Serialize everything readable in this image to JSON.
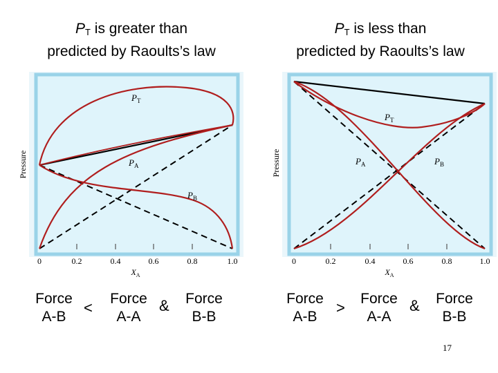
{
  "left_panel": {
    "title_line1_prefix": "P",
    "title_line1_sub": "T",
    "title_line1_suffix": " is greater than",
    "title_line2": "predicted by Raoults’s law",
    "relation": {
      "left_force": [
        "Force",
        "A-B"
      ],
      "comparator": "<",
      "mid_force": [
        "Force",
        "A-A"
      ],
      "connector": "&",
      "right_force": [
        "Force",
        "B-B"
      ]
    }
  },
  "right_panel": {
    "title_line1_prefix": "P",
    "title_line1_sub": "T",
    "title_line1_suffix": " is less than",
    "title_line2": "predicted by Raoults’s law",
    "relation": {
      "left_force": [
        "Force",
        "A-B"
      ],
      "comparator": ">",
      "mid_force": [
        "Force",
        "A-A"
      ],
      "connector": "&",
      "right_force": [
        "Force",
        "B-B"
      ]
    }
  },
  "chart_data": [
    {
      "type": "line",
      "xlabel": "X_A",
      "ylabel": "Pressure",
      "x_ticks": [
        "0",
        "0.2",
        "0.4",
        "0.6",
        "0.8",
        "1.0"
      ],
      "curve_labels": [
        "P_T",
        "P_A",
        "P_B"
      ],
      "deviation": "positive",
      "colors": {
        "curves": "#b01e1e",
        "ideal": "#000000",
        "background": "#dff4fb",
        "frame": "#9ad3e8"
      }
    },
    {
      "type": "line",
      "xlabel": "X_A",
      "ylabel": "Pressure",
      "x_ticks": [
        "0",
        "0.2",
        "0.4",
        "0.6",
        "0.8",
        "1.0"
      ],
      "curve_labels": [
        "P_T",
        "P_A",
        "P_B"
      ],
      "deviation": "negative",
      "colors": {
        "curves": "#b01e1e",
        "ideal": "#000000",
        "background": "#dff4fb",
        "frame": "#9ad3e8"
      }
    }
  ],
  "page_number": "17"
}
